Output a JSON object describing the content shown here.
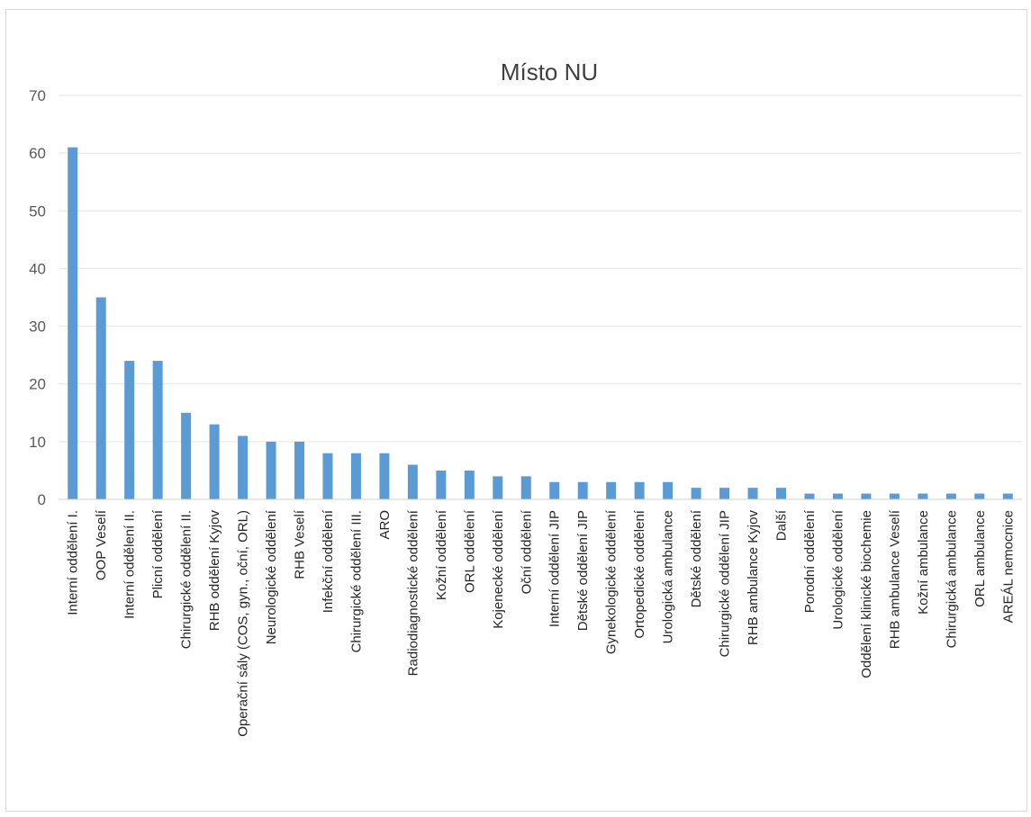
{
  "chart_data": {
    "type": "bar",
    "title": "Místo NU",
    "xlabel": "",
    "ylabel": "",
    "ylim": [
      0,
      70
    ],
    "yticks": [
      0,
      10,
      20,
      30,
      40,
      50,
      60,
      70
    ],
    "grid": true,
    "legend": "none",
    "bar_color": "#5b9bd5",
    "categories": [
      "Interní oddělení I.",
      "OOP Veselí",
      "Interní oddělení II.",
      "Plicní oddělení",
      "Chirurgické oddělení II.",
      "RHB oddělení Kyjov",
      "Operační sály (COS, gyn., oční, ORL)",
      "Neurologické oddělení",
      "RHB Veselí",
      "Infekční oddělení",
      "Chirurgické oddělení III.",
      "ARO",
      "Radiodiagnostické oddělení",
      "Kožní oddělení",
      "ORL oddělení",
      "Kojenecké oddělení",
      "Oční oddělení",
      "Interní oddělení JIP",
      "Dětské oddělení JIP",
      "Gynekologické oddělení",
      "Ortopedické oddělení",
      "Urologická ambulance",
      "Dětské oddělení",
      "Chirurgické oddělení JIP",
      "RHB ambulance Kyjov",
      "Další",
      "Porodní oddělení",
      "Urologické oddělení",
      "Oddělení klinické biochemie",
      "RHB ambulance Veselí",
      "Kožní ambulance",
      "Chirurgická ambulance",
      "ORL ambulance",
      "AREÁL nemocnice"
    ],
    "values": [
      61,
      35,
      24,
      24,
      15,
      13,
      11,
      10,
      10,
      8,
      8,
      8,
      6,
      5,
      5,
      4,
      4,
      3,
      3,
      3,
      3,
      3,
      2,
      2,
      2,
      2,
      1,
      1,
      1,
      1,
      1,
      1,
      1,
      1
    ]
  }
}
